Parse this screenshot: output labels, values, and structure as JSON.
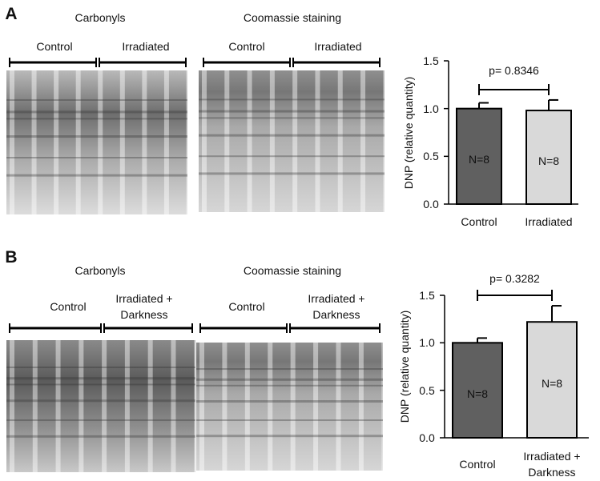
{
  "panels": [
    {
      "label": "A",
      "blots": [
        {
          "title": "Carbonyls",
          "groups": [
            "Control",
            "Irradiated"
          ]
        },
        {
          "title": "Coomassie staining",
          "groups": [
            "Control",
            "Irradiated"
          ]
        }
      ]
    },
    {
      "label": "B",
      "blots": [
        {
          "title": "Carbonyls",
          "groups": [
            "Control",
            "Irradiated + Darkness"
          ]
        },
        {
          "title": "Coomassie staining",
          "groups": [
            "Control",
            "Irradiated + Darkness"
          ]
        }
      ]
    }
  ],
  "chart_data": [
    {
      "type": "bar",
      "y_label": "DNP (relative quantity)",
      "categories": [
        "Control",
        "Irradiated"
      ],
      "values": [
        1.0,
        0.98
      ],
      "errors": [
        0.06,
        0.11
      ],
      "bar_labels": [
        "N=8",
        "N=8"
      ],
      "colors": [
        "#606060",
        "#d9d9d9"
      ],
      "annotation": "p= 0.8346",
      "ylim": [
        0,
        1.5
      ],
      "yticks": [
        {
          "value": 0,
          "label": "0.0"
        },
        0.5,
        {
          "value": 1,
          "label": "1.0"
        },
        1.5
      ]
    },
    {
      "type": "bar",
      "y_label": "DNP (relative quantity)",
      "categories": [
        "Control",
        "Irradiated + Darkness"
      ],
      "values": [
        1.0,
        1.22
      ],
      "errors": [
        0.05,
        0.17
      ],
      "bar_labels": [
        "N=8",
        "N=8"
      ],
      "colors": [
        "#606060",
        "#d9d9d9"
      ],
      "annotation": "p= 0.3282",
      "ylim": [
        0,
        1.5
      ],
      "yticks": [
        {
          "value": 0,
          "label": "0.0"
        },
        0.5,
        {
          "value": 1,
          "label": "1.0"
        },
        1.5
      ]
    }
  ]
}
